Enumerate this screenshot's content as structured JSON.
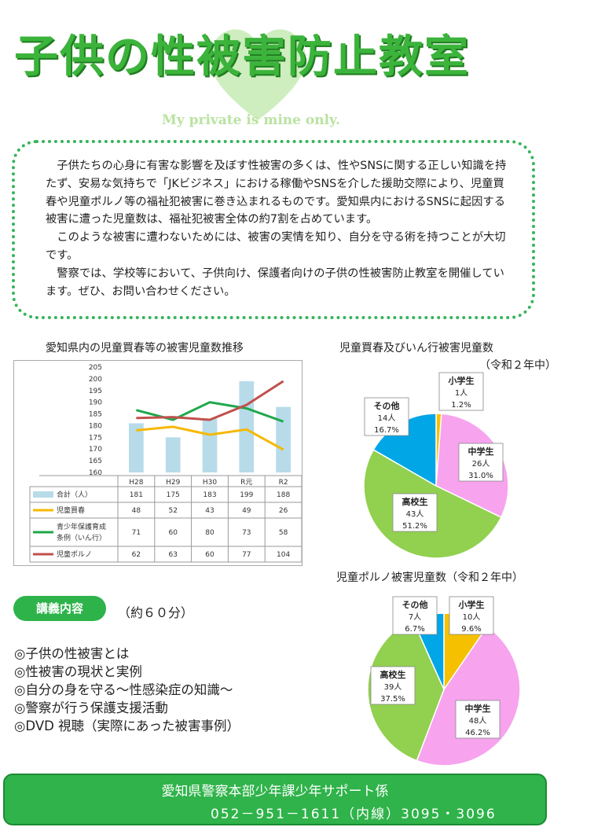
{
  "header": {
    "title": "子供の性被害防止教室",
    "subtitle": "My private is mine only."
  },
  "intro": {
    "paragraphs": [
      "子供たちの心身に有害な影響を及ぼす性被害の多くは、性やSNSに関する正しい知識を持たず、安易な気持ちで「JKビジネス」における稼働やSNSを介した援助交際により、児童買春や児童ポルノ等の福祉犯被害に巻き込まれるものです。愛知県内におけるSNSに起因する被害に遭った児童数は、福祉犯被害全体の約7割を占めています。",
      "このような被害に遭わないためには、被害の実情を知り、自分を守る術を持つことが大切です。",
      "警察では、学校等において、子供向け、保護者向けの子供の性被害防止教室を開催しています。ぜひ、お問い合わせください。"
    ]
  },
  "charts_text": {
    "combo_title": "愛知県内の児童買春等の被害児童数推移",
    "pie1_title": "児童買春及びいん行被害児童数",
    "pie1_sub": "（令和２年中）",
    "pie2_title": "児童ポルノ被害児童数（令和２年中）"
  },
  "chart_data": [
    {
      "type": "bar",
      "categories": [
        "H28",
        "H29",
        "H30",
        "R元",
        "R2"
      ],
      "left_axis": {
        "ylim": [
          160,
          205
        ],
        "ticks": [
          160,
          165,
          170,
          175,
          180,
          185,
          190,
          195,
          200,
          205
        ]
      },
      "right_axis": {
        "ylim": [
          0,
          120
        ],
        "ticks": [
          0,
          20,
          40,
          60,
          80,
          100,
          120
        ]
      },
      "series": [
        {
          "name": "合計（人）",
          "kind": "bar",
          "axis": "left",
          "color": "#b7dbe9",
          "values": [
            181,
            175,
            183,
            199,
            188
          ]
        },
        {
          "name": "児童買春",
          "kind": "line",
          "axis": "right",
          "color": "#f5b800",
          "values": [
            48,
            52,
            43,
            49,
            26
          ]
        },
        {
          "name": "青少年保護育成条例（いん行）",
          "kind": "line",
          "axis": "right",
          "color": "#1fa84a",
          "values": [
            71,
            60,
            80,
            73,
            58
          ]
        },
        {
          "name": "児童ポルノ",
          "kind": "line",
          "axis": "right",
          "color": "#c0504d",
          "values": [
            62,
            63,
            60,
            77,
            104
          ]
        }
      ],
      "legend_lines": [
        [
          "合計（人）"
        ],
        [
          "児童買春"
        ],
        [
          "青少年保護育成",
          "条例（いん行）"
        ],
        [
          "児童ポルノ"
        ]
      ]
    },
    {
      "type": "pie",
      "slices": [
        {
          "name": "小学生",
          "count": "1人",
          "pct": "1.2%",
          "value": 1.2,
          "color": "#f5c000"
        },
        {
          "name": "中学生",
          "count": "26人",
          "pct": "31.0%",
          "value": 31.0,
          "color": "#f7a3ee"
        },
        {
          "name": "高校生",
          "count": "43人",
          "pct": "51.2%",
          "value": 51.2,
          "color": "#92d050"
        },
        {
          "name": "その他",
          "count": "14人",
          "pct": "16.7%",
          "value": 16.7,
          "color": "#00a6e6"
        }
      ]
    },
    {
      "type": "pie",
      "slices": [
        {
          "name": "小学生",
          "count": "10人",
          "pct": "9.6%",
          "value": 9.6,
          "color": "#f5c000"
        },
        {
          "name": "中学生",
          "count": "48人",
          "pct": "46.2%",
          "value": 46.2,
          "color": "#f7a3ee"
        },
        {
          "name": "高校生",
          "count": "39人",
          "pct": "37.5%",
          "value": 37.5,
          "color": "#92d050"
        },
        {
          "name": "その他",
          "count": "7人",
          "pct": "6.7%",
          "value": 6.7,
          "color": "#00a6e6"
        }
      ]
    }
  ],
  "lecture": {
    "badge": "講義内容",
    "duration": "（約６０分）",
    "items": [
      "◎子供の性被害とは",
      "◎性被害の現状と実例",
      "◎自分の身を守る～性感染症の知識～",
      "◎警察が行う保護支援活動",
      "◎DVD 視聴（実際にあった被害事例）"
    ]
  },
  "footer": {
    "org": "愛知県警察本部少年課少年サポート係",
    "phone": "052－951－1611（内線）3095・3096"
  },
  "colors": {
    "brand_green": "#3cb43c",
    "footer_green": "#2fb34a"
  }
}
